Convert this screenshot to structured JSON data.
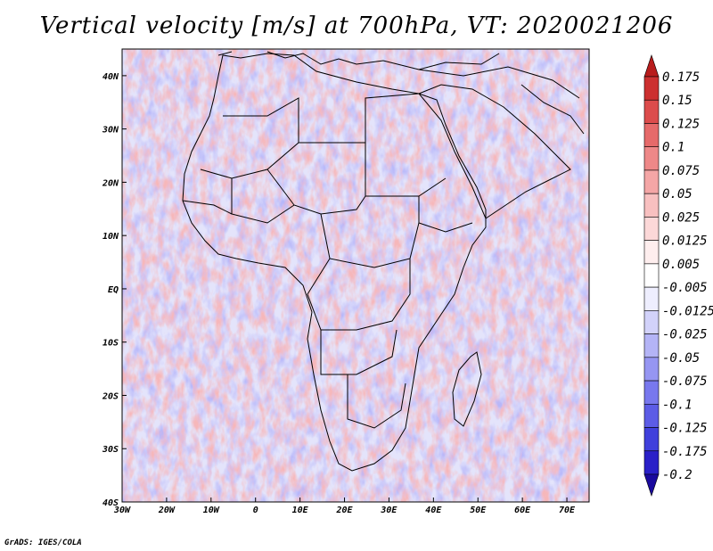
{
  "title": "Vertical velocity [m/s] at 700hPa, VT: 2020021206",
  "credit": "GrADS: IGES/COLA",
  "map": {
    "lon_range": [
      -30,
      75
    ],
    "lat_range": [
      -40,
      45
    ],
    "lon_ticks": [
      {
        "lon": -30,
        "label": "30W"
      },
      {
        "lon": -20,
        "label": "20W"
      },
      {
        "lon": -10,
        "label": "10W"
      },
      {
        "lon": 0,
        "label": "0"
      },
      {
        "lon": 10,
        "label": "10E"
      },
      {
        "lon": 20,
        "label": "20E"
      },
      {
        "lon": 30,
        "label": "30E"
      },
      {
        "lon": 40,
        "label": "40E"
      },
      {
        "lon": 50,
        "label": "50E"
      },
      {
        "lon": 60,
        "label": "60E"
      },
      {
        "lon": 70,
        "label": "70E"
      }
    ],
    "lat_ticks": [
      {
        "lat": 40,
        "label": "40N"
      },
      {
        "lat": 30,
        "label": "30N"
      },
      {
        "lat": 20,
        "label": "20N"
      },
      {
        "lat": 10,
        "label": "10N"
      },
      {
        "lat": 0,
        "label": "EQ"
      },
      {
        "lat": -10,
        "label": "10S"
      },
      {
        "lat": -20,
        "label": "20S"
      },
      {
        "lat": -30,
        "label": "30S"
      },
      {
        "lat": -40,
        "label": "40S"
      }
    ]
  },
  "colorbar": {
    "colors": [
      "#1a0a9e",
      "#2a20c8",
      "#4040dc",
      "#5c5ce6",
      "#7878ee",
      "#9696f2",
      "#b4b4f6",
      "#d2d2fa",
      "#eeeefe",
      "#ffffff",
      "#feeeee",
      "#fcd8d8",
      "#f8c0c0",
      "#f4a6a6",
      "#ee8888",
      "#e66a6a",
      "#dc4c4c",
      "#cc3030",
      "#b81c1c"
    ],
    "labels": [
      "0.175",
      "0.15",
      "0.125",
      "0.1",
      "0.075",
      "0.05",
      "0.025",
      "0.0125",
      "0.005",
      "-0.005",
      "-0.0125",
      "-0.025",
      "-0.05",
      "-0.075",
      "-0.1",
      "-0.125",
      "-0.175",
      "-0.2"
    ]
  }
}
